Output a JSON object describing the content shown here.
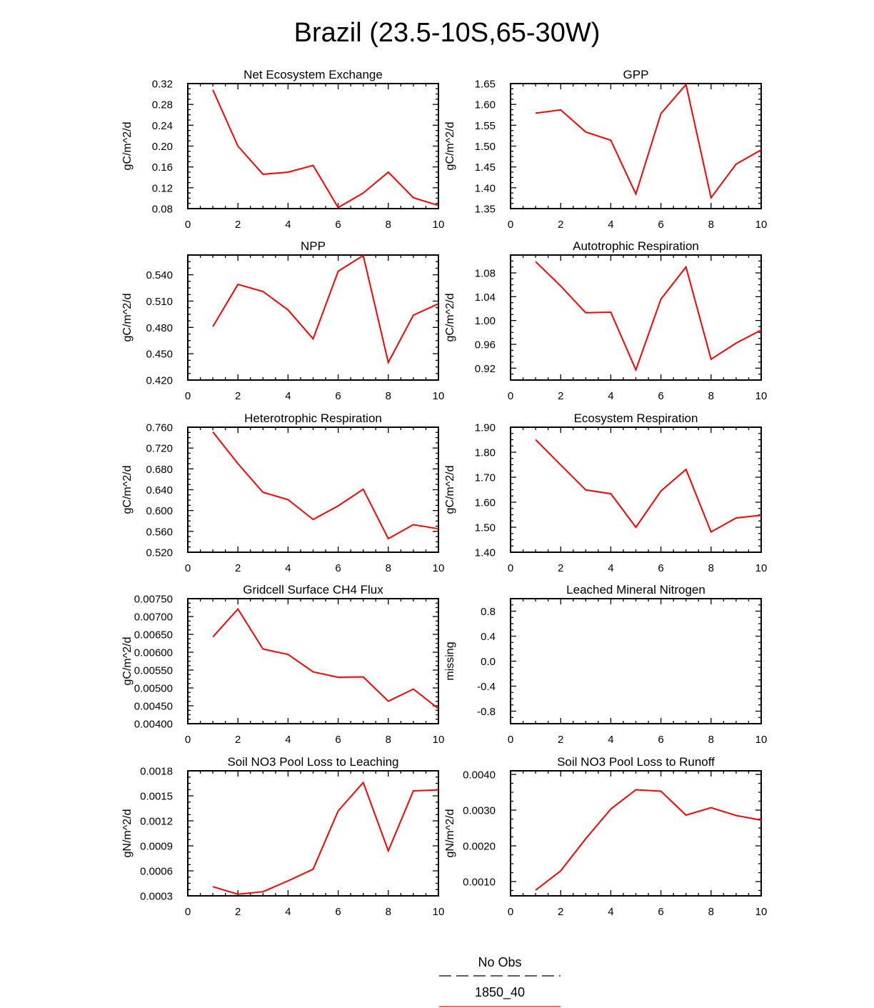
{
  "page_title": "Brazil (23.5-10S,65-30W)",
  "colors": {
    "series": "#ff0000",
    "axis": "#000000"
  },
  "legend": {
    "entries": [
      {
        "label": "No Obs",
        "line": "dashed",
        "color": "#000000"
      },
      {
        "label": "1850_40",
        "line": "solid",
        "color": "#ff0000"
      }
    ]
  },
  "chart_data": [
    {
      "type": "line",
      "title": "Net Ecosystem Exchange",
      "ylabel": "gC/m^2/d",
      "xlim": [
        0,
        10
      ],
      "xticks": [
        "0",
        "2",
        "4",
        "6",
        "8",
        "10"
      ],
      "ylim": [
        0.08,
        0.32
      ],
      "yticks": [
        "0.08",
        "0.12",
        "0.16",
        "0.20",
        "0.24",
        "0.28",
        "0.32"
      ],
      "x": [
        1,
        2,
        3,
        4,
        5,
        6,
        7,
        8,
        9,
        10
      ],
      "series": [
        {
          "name": "1850_40",
          "values": [
            0.308,
            0.2,
            0.146,
            0.15,
            0.163,
            0.082,
            0.11,
            0.15,
            0.101,
            0.086
          ]
        }
      ]
    },
    {
      "type": "line",
      "title": "GPP",
      "ylabel": "gC/m^2/d",
      "xlim": [
        0,
        10
      ],
      "xticks": [
        "0",
        "2",
        "4",
        "6",
        "8",
        "10"
      ],
      "ylim": [
        1.35,
        1.65
      ],
      "yticks": [
        "1.35",
        "1.40",
        "1.45",
        "1.50",
        "1.55",
        "1.60",
        "1.65"
      ],
      "x": [
        1,
        2,
        3,
        4,
        5,
        6,
        7,
        8,
        9,
        10
      ],
      "series": [
        {
          "name": "1850_40",
          "values": [
            1.579,
            1.587,
            1.534,
            1.514,
            1.385,
            1.578,
            1.648,
            1.376,
            1.457,
            1.491
          ]
        }
      ]
    },
    {
      "type": "line",
      "title": "NPP",
      "ylabel": "gC/m^2/d",
      "xlim": [
        0,
        10
      ],
      "xticks": [
        "0",
        "2",
        "4",
        "6",
        "8",
        "10"
      ],
      "ylim": [
        0.42,
        0.5625
      ],
      "yticks": [
        "0.420",
        "0.450",
        "0.480",
        "0.510",
        "0.540"
      ],
      "x": [
        1,
        2,
        3,
        4,
        5,
        6,
        7,
        8,
        9,
        10
      ],
      "series": [
        {
          "name": "1850_40",
          "values": [
            0.481,
            0.529,
            0.521,
            0.5,
            0.467,
            0.544,
            0.562,
            0.44,
            0.494,
            0.507
          ]
        }
      ]
    },
    {
      "type": "line",
      "title": "Autotrophic Respiration",
      "ylabel": "gC/m^2/d",
      "xlim": [
        0,
        10
      ],
      "xticks": [
        "0",
        "2",
        "4",
        "6",
        "8",
        "10"
      ],
      "ylim": [
        0.9,
        1.11
      ],
      "yticks": [
        "0.92",
        "0.96",
        "1.00",
        "1.04",
        "1.08"
      ],
      "x": [
        1,
        2,
        3,
        4,
        5,
        6,
        7,
        8,
        9,
        10
      ],
      "series": [
        {
          "name": "1850_40",
          "values": [
            1.099,
            1.058,
            1.013,
            1.014,
            0.917,
            1.036,
            1.09,
            0.935,
            0.962,
            0.984
          ]
        }
      ]
    },
    {
      "type": "line",
      "title": "Heterotrophic Respiration",
      "ylabel": "gC/m^2/d",
      "xlim": [
        0,
        10
      ],
      "xticks": [
        "0",
        "2",
        "4",
        "6",
        "8",
        "10"
      ],
      "ylim": [
        0.52,
        0.76
      ],
      "yticks": [
        "0.520",
        "0.560",
        "0.600",
        "0.640",
        "0.680",
        "0.720",
        "0.760"
      ],
      "x": [
        1,
        2,
        3,
        4,
        5,
        6,
        7,
        8,
        9,
        10
      ],
      "series": [
        {
          "name": "1850_40",
          "values": [
            0.751,
            0.69,
            0.635,
            0.621,
            0.583,
            0.609,
            0.641,
            0.546,
            0.573,
            0.565
          ]
        }
      ]
    },
    {
      "type": "line",
      "title": "Ecosystem Respiration",
      "ylabel": "gC/m^2/d",
      "xlim": [
        0,
        10
      ],
      "xticks": [
        "0",
        "2",
        "4",
        "6",
        "8",
        "10"
      ],
      "ylim": [
        1.4,
        1.9
      ],
      "yticks": [
        "1.40",
        "1.50",
        "1.60",
        "1.70",
        "1.80",
        "1.90"
      ],
      "x": [
        1,
        2,
        3,
        4,
        5,
        6,
        7,
        8,
        9,
        10
      ],
      "series": [
        {
          "name": "1850_40",
          "values": [
            1.85,
            1.749,
            1.649,
            1.634,
            1.5,
            1.645,
            1.731,
            1.481,
            1.537,
            1.548
          ]
        }
      ]
    },
    {
      "type": "line",
      "title": "Gridcell Surface CH4 Flux",
      "ylabel": "gC/m^2/d",
      "xlim": [
        0,
        10
      ],
      "xticks": [
        "0",
        "2",
        "4",
        "6",
        "8",
        "10"
      ],
      "ylim": [
        0.004,
        0.0075
      ],
      "yticks": [
        "0.00400",
        "0.00450",
        "0.00500",
        "0.00550",
        "0.00600",
        "0.00650",
        "0.00700",
        "0.00750"
      ],
      "x": [
        1,
        2,
        3,
        4,
        5,
        6,
        7,
        8,
        9,
        10
      ],
      "series": [
        {
          "name": "1850_40",
          "values": [
            0.00643,
            0.00721,
            0.00609,
            0.00594,
            0.00545,
            0.0053,
            0.00531,
            0.00463,
            0.00497,
            0.00442
          ]
        }
      ]
    },
    {
      "type": "line",
      "title": "Leached Mineral Nitrogen",
      "ylabel": "missing",
      "xlim": [
        0,
        10
      ],
      "xticks": [
        "0",
        "2",
        "4",
        "6",
        "8",
        "10"
      ],
      "ylim": [
        -1.0,
        1.0
      ],
      "yticks": [
        "-0.8",
        "-0.4",
        "0.0",
        "0.4",
        "0.8"
      ],
      "x": [],
      "series": []
    },
    {
      "type": "line",
      "title": "Soil NO3 Pool Loss to Leaching",
      "ylabel": "gN/m^2/d",
      "xlim": [
        0,
        10
      ],
      "xticks": [
        "0",
        "2",
        "4",
        "6",
        "8",
        "10"
      ],
      "ylim": [
        0.0003,
        0.0018
      ],
      "yticks": [
        "0.0003",
        "0.0006",
        "0.0009",
        "0.0012",
        "0.0015",
        "0.0018"
      ],
      "x": [
        1,
        2,
        3,
        4,
        5,
        6,
        7,
        8,
        9,
        10
      ],
      "series": [
        {
          "name": "1850_40",
          "values": [
            0.00041,
            0.00032,
            0.00035,
            0.00048,
            0.00062,
            0.00132,
            0.00166,
            0.00084,
            0.00156,
            0.00157
          ]
        }
      ]
    },
    {
      "type": "line",
      "title": "Soil NO3 Pool Loss to Runoff",
      "ylabel": "gN/m^2/d",
      "xlim": [
        0,
        10
      ],
      "xticks": [
        "0",
        "2",
        "4",
        "6",
        "8",
        "10"
      ],
      "ylim": [
        0.0006,
        0.0041
      ],
      "yticks": [
        "0.0010",
        "0.0020",
        "0.0030",
        "0.0040"
      ],
      "x": [
        1,
        2,
        3,
        4,
        5,
        6,
        7,
        8,
        9,
        10
      ],
      "series": [
        {
          "name": "1850_40",
          "values": [
            0.00076,
            0.0013,
            0.0022,
            0.00303,
            0.00357,
            0.00353,
            0.00286,
            0.00307,
            0.00285,
            0.00272
          ]
        }
      ]
    }
  ]
}
